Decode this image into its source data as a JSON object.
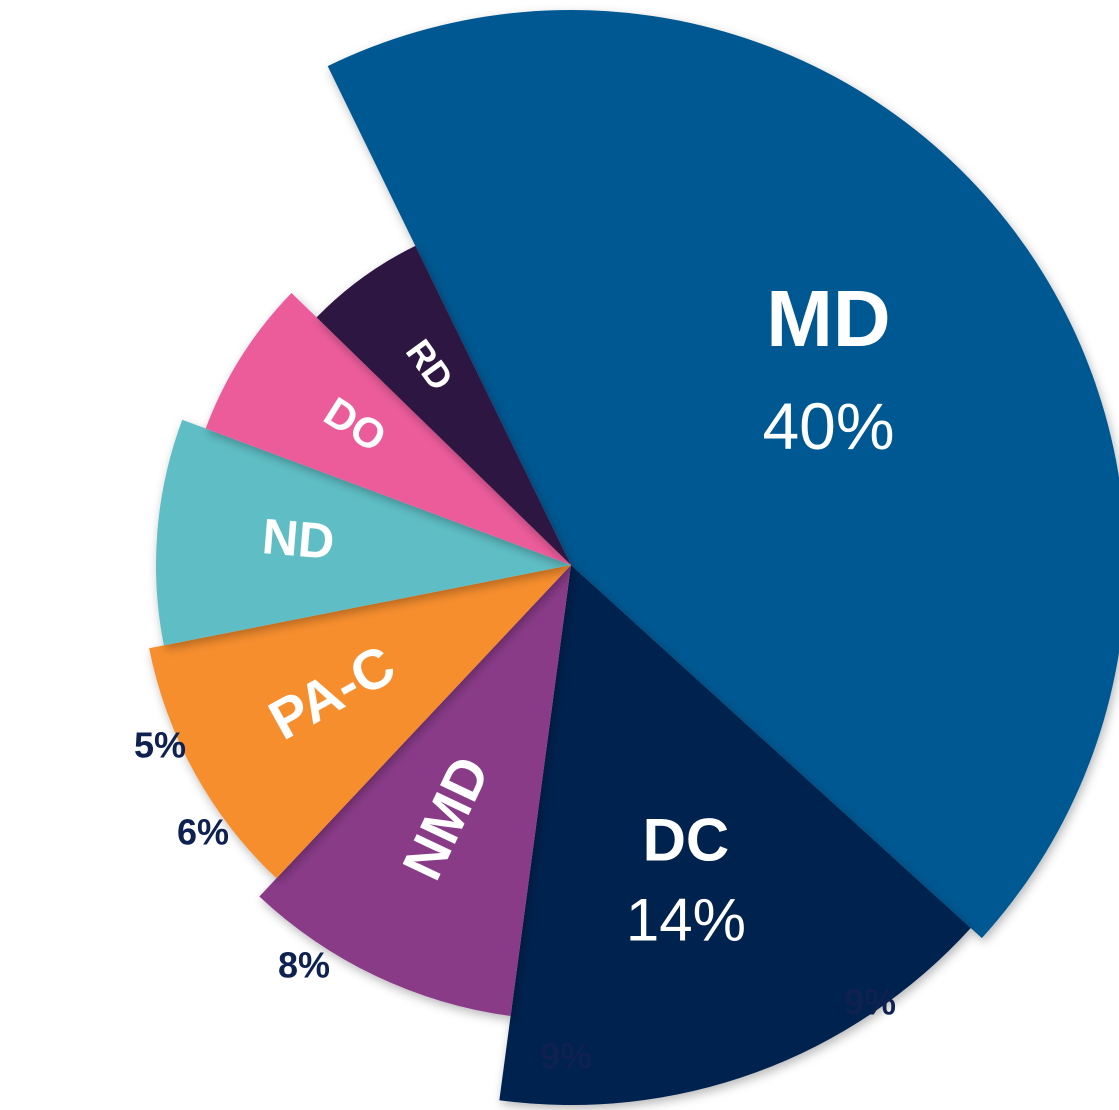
{
  "chart_data": {
    "type": "pie",
    "title": "",
    "colors": {
      "MD": "#035892",
      "DC": "#03204f",
      "NMD": "#8a3a88",
      "PA-C": "#f78e2d",
      "ND": "#5fbec5",
      "DO": "#ec5b9b",
      "RD": "#2e1242",
      "outside_label": "#0f2150"
    },
    "slices": [
      {
        "label": "MD",
        "value": 40,
        "value_text": "40%"
      },
      {
        "label": "DC",
        "value": 14,
        "value_text": "14%"
      },
      {
        "label": "NMD",
        "value": 9,
        "value_text": "9%"
      },
      {
        "label": "PA-C",
        "value": 9,
        "value_text": "9%"
      },
      {
        "label": "ND",
        "value": 8,
        "value_text": "8%"
      },
      {
        "label": "DO",
        "value": 6,
        "value_text": "6%"
      },
      {
        "label": "RD",
        "value": 5,
        "value_text": "5%"
      }
    ]
  }
}
